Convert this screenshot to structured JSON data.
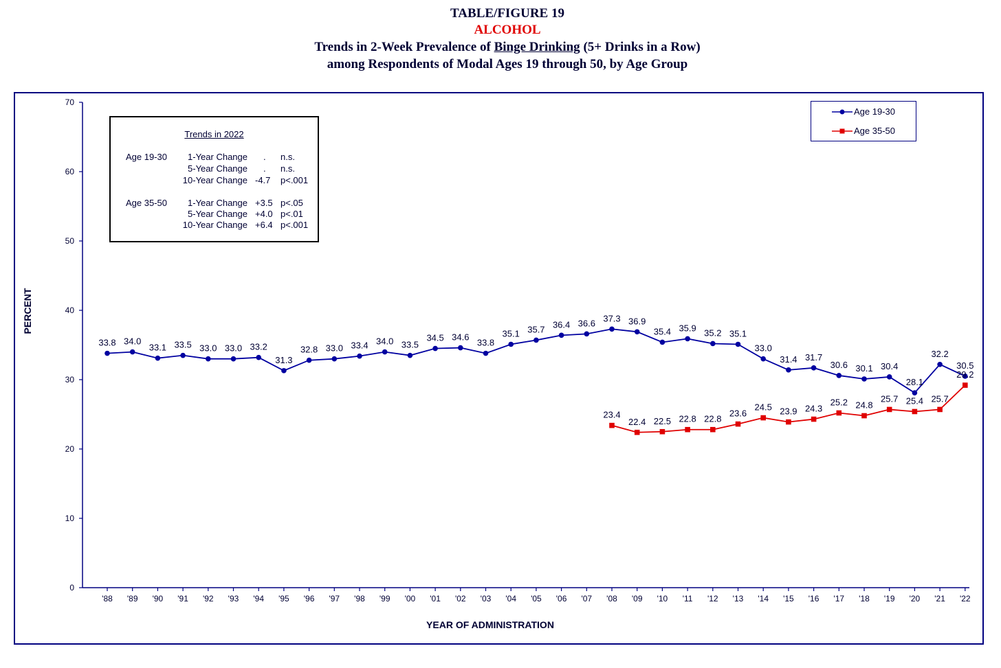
{
  "header": {
    "line1": "TABLE/FIGURE 19",
    "line2": "ALCOHOL",
    "line3_pre": "Trends in 2-Week Prevalence of ",
    "line3_underlined": "Binge Drinking",
    "line3_post": " (5+ Drinks in a Row)",
    "line4": "among Respondents of Modal Ages 19 through 50, by Age Group"
  },
  "trends_box": {
    "title": "Trends in 2022",
    "groups": [
      {
        "name": "Age 19-30",
        "rows": [
          {
            "label": "1-Year Change",
            "value": ".",
            "sig": "n.s."
          },
          {
            "label": "5-Year Change",
            "value": ".",
            "sig": "n.s."
          },
          {
            "label": "10-Year Change",
            "value": "-4.7",
            "sig": "p<.001"
          }
        ]
      },
      {
        "name": "Age 35-50",
        "rows": [
          {
            "label": "1-Year Change",
            "value": "+3.5",
            "sig": "p<.05"
          },
          {
            "label": "5-Year Change",
            "value": "+4.0",
            "sig": "p<.01"
          },
          {
            "label": "10-Year Change",
            "value": "+6.4",
            "sig": "p<.001"
          }
        ]
      }
    ]
  },
  "colors": {
    "series1": "#0000a0",
    "series2": "#e00000",
    "axis": "#000080",
    "text": "#000033"
  },
  "chart_data": {
    "type": "line",
    "xlabel": "YEAR OF ADMINISTRATION",
    "ylabel": "PERCENT",
    "ylim": [
      0,
      70
    ],
    "yticks": [
      0,
      10,
      20,
      30,
      40,
      50,
      60,
      70
    ],
    "categories": [
      "'88",
      "'89",
      "'90",
      "'91",
      "'92",
      "'93",
      "'94",
      "'95",
      "'96",
      "'97",
      "'98",
      "'99",
      "'00",
      "'01",
      "'02",
      "'03",
      "'04",
      "'05",
      "'06",
      "'07",
      "'08",
      "'09",
      "'10",
      "'11",
      "'12",
      "'13",
      "'14",
      "'15",
      "'16",
      "'17",
      "'18",
      "'19",
      "'20",
      "'21",
      "'22"
    ],
    "legend_position": "top-right",
    "grid": false,
    "series": [
      {
        "name": "Age 19-30",
        "marker": "circle",
        "values": [
          33.8,
          34.0,
          33.1,
          33.5,
          33.0,
          33.0,
          33.2,
          31.3,
          32.8,
          33.0,
          33.4,
          34.0,
          33.5,
          34.5,
          34.6,
          33.8,
          35.1,
          35.7,
          36.4,
          36.6,
          37.3,
          36.9,
          35.4,
          35.9,
          35.2,
          35.1,
          33.0,
          31.4,
          31.7,
          30.6,
          30.1,
          30.4,
          28.1,
          32.2,
          30.5
        ],
        "labels": [
          "33.8",
          "34.0",
          "33.1",
          "33.5",
          "33.0",
          "33.0",
          "33.2",
          "31.3",
          "32.8",
          "33.0",
          "33.4",
          "34.0",
          "33.5",
          "34.5",
          "34.6",
          "33.8",
          "35.1",
          "35.7",
          "36.4",
          "36.6",
          "37.3",
          "36.9",
          "35.4",
          "35.9",
          "35.2",
          "35.1",
          "33.0",
          "31.4",
          "31.7",
          "30.6",
          "30.1",
          "30.4",
          "28.1",
          "32.2",
          "30.5"
        ]
      },
      {
        "name": "Age 35-50",
        "marker": "square",
        "values": [
          null,
          null,
          null,
          null,
          null,
          null,
          null,
          null,
          null,
          null,
          null,
          null,
          null,
          null,
          null,
          null,
          null,
          null,
          null,
          null,
          23.4,
          22.4,
          22.5,
          22.8,
          22.8,
          23.6,
          24.5,
          23.9,
          24.3,
          25.2,
          24.8,
          25.7,
          25.4,
          25.7,
          29.2
        ],
        "labels": [
          null,
          null,
          null,
          null,
          null,
          null,
          null,
          null,
          null,
          null,
          null,
          null,
          null,
          null,
          null,
          null,
          null,
          null,
          null,
          null,
          "23.4",
          "22.4",
          "22.5",
          "22.8",
          "22.8",
          "23.6",
          "24.5",
          "23.9",
          "24.3",
          "25.2",
          "24.8",
          "25.7",
          "25.4",
          "25.7",
          "29.2"
        ]
      }
    ]
  }
}
